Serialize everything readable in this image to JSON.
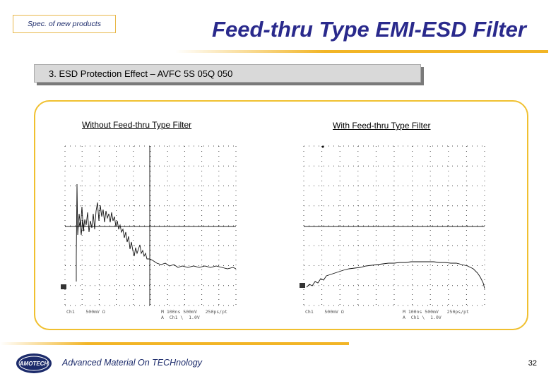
{
  "header": {
    "tag": "Spec. of new products",
    "title": "Feed-thru Type EMI-ESD Filter"
  },
  "section": {
    "heading": "3. ESD Protection Effect – AVFC 5S 05Q 050"
  },
  "scopes": [
    {
      "title": "Without Feed-thru Type Filter",
      "readout_left": "Ch1    500mV Ω",
      "readout_right": "M 100ns 500mV   250ps/pt\nA  Ch1 \\  1.0V"
    },
    {
      "title": "With Feed-thru Type Filter",
      "readout_left": "Ch1    500mV Ω",
      "readout_right": "M 100ns 500mV   250ps/pt\nA  Ch1 \\  1.0V"
    }
  ],
  "footer": {
    "logo_text": "AMOTECH",
    "text": "Advanced Material On TECHnology",
    "page": "32"
  },
  "colors": {
    "accent_gold": "#f2b526",
    "title_navy": "#2a2a8c",
    "footer_navy": "#1c2b6b"
  }
}
